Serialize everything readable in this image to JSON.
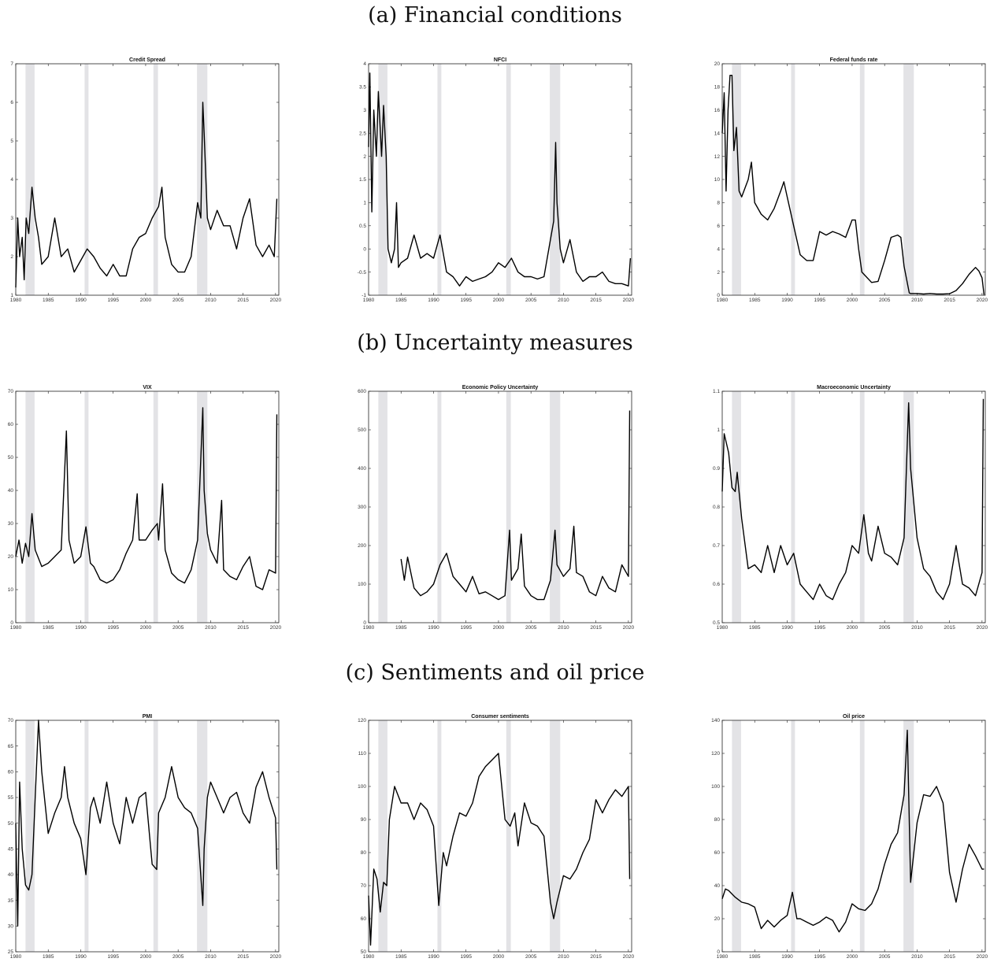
{
  "sections": [
    {
      "label": "(a) Financial conditions"
    },
    {
      "label": "(b) Uncertainty measures"
    },
    {
      "label": "(c) Sentiments and oil price"
    }
  ],
  "colors": {
    "line": "#000000",
    "recession": "#e3e3e6",
    "axes": "#222222"
  },
  "chart_data": [
    {
      "type": "line",
      "title": "Credit Spread",
      "xlim": [
        1980,
        2020.5
      ],
      "ylim": [
        1,
        7
      ],
      "xticks": [
        1980,
        1985,
        1990,
        1995,
        2000,
        2005,
        2010,
        2015,
        2020
      ],
      "yticks": [
        1,
        2,
        3,
        4,
        5,
        6,
        7
      ],
      "recessions": [
        [
          1981.5,
          1982.9
        ],
        [
          1990.6,
          1991.2
        ],
        [
          2001.2,
          2001.9
        ],
        [
          2007.9,
          2009.5
        ]
      ],
      "x": [
        1980,
        1980.3,
        1980.6,
        1981,
        1981.3,
        1981.6,
        1982,
        1982.5,
        1983,
        1983.5,
        1984,
        1985,
        1986,
        1987,
        1988,
        1989,
        1990,
        1991,
        1992,
        1993,
        1994,
        1995,
        1996,
        1997,
        1998,
        1999,
        2000,
        2001,
        2002,
        2002.5,
        2003,
        2004,
        2005,
        2006,
        2007,
        2008,
        2008.5,
        2008.8,
        2009,
        2009.5,
        2010,
        2011,
        2012,
        2013,
        2014,
        2015,
        2016,
        2017,
        2018,
        2019,
        2019.8,
        2020.2
      ],
      "y": [
        1.2,
        3.0,
        2.0,
        2.5,
        1.4,
        3.0,
        2.6,
        3.8,
        3.0,
        2.5,
        1.8,
        2.0,
        3.0,
        2.0,
        2.2,
        1.6,
        1.9,
        2.2,
        2.0,
        1.7,
        1.5,
        1.8,
        1.5,
        1.5,
        2.2,
        2.5,
        2.6,
        3.0,
        3.3,
        3.8,
        2.5,
        1.8,
        1.6,
        1.6,
        2.0,
        3.4,
        3.0,
        6.0,
        5.2,
        3.0,
        2.7,
        3.2,
        2.8,
        2.8,
        2.2,
        3.0,
        3.5,
        2.3,
        2.0,
        2.3,
        2.0,
        3.5
      ]
    },
    {
      "type": "line",
      "title": "NFCI",
      "xlim": [
        1980,
        2020.5
      ],
      "ylim": [
        -1,
        4
      ],
      "xticks": [
        1980,
        1985,
        1990,
        1995,
        2000,
        2005,
        2010,
        2015,
        2020
      ],
      "yticks": [
        -1,
        -0.5,
        0,
        0.5,
        1,
        1.5,
        2,
        2.5,
        3,
        3.5,
        4
      ],
      "recessions": [
        [
          1981.5,
          1982.9
        ],
        [
          1990.6,
          1991.2
        ],
        [
          2001.2,
          2001.9
        ],
        [
          2007.9,
          2009.5
        ]
      ],
      "x": [
        1980,
        1980.2,
        1980.5,
        1980.8,
        1981.2,
        1981.5,
        1982,
        1982.3,
        1982.7,
        1983,
        1983.5,
        1984,
        1984.3,
        1984.6,
        1985,
        1986,
        1987,
        1988,
        1989,
        1990,
        1991,
        1992,
        1993,
        1994,
        1995,
        1996,
        1997,
        1998,
        1999,
        2000,
        2001,
        2002,
        2003,
        2004,
        2005,
        2006,
        2007,
        2008,
        2008.5,
        2008.8,
        2009,
        2009.5,
        2010,
        2011,
        2012,
        2013,
        2014,
        2015,
        2016,
        2017,
        2018,
        2019,
        2020,
        2020.3
      ],
      "y": [
        2.2,
        3.8,
        0.8,
        3.0,
        2.0,
        3.4,
        2.0,
        3.1,
        2.0,
        0.0,
        -0.3,
        0.0,
        1.0,
        -0.4,
        -0.3,
        -0.2,
        0.3,
        -0.2,
        -0.1,
        -0.2,
        0.3,
        -0.5,
        -0.6,
        -0.8,
        -0.6,
        -0.7,
        -0.65,
        -0.6,
        -0.5,
        -0.3,
        -0.4,
        -0.2,
        -0.5,
        -0.6,
        -0.6,
        -0.65,
        -0.6,
        0.2,
        0.6,
        2.3,
        1.0,
        0.0,
        -0.3,
        0.2,
        -0.5,
        -0.7,
        -0.6,
        -0.6,
        -0.5,
        -0.7,
        -0.75,
        -0.75,
        -0.8,
        -0.2
      ]
    },
    {
      "type": "line",
      "title": "Federal funds rate",
      "xlim": [
        1980,
        2020.5
      ],
      "ylim": [
        0,
        20
      ],
      "xticks": [
        1980,
        1985,
        1990,
        1995,
        2000,
        2005,
        2010,
        2015,
        2020
      ],
      "yticks": [
        0,
        2,
        4,
        6,
        8,
        10,
        12,
        14,
        16,
        18,
        20
      ],
      "recessions": [
        [
          1981.5,
          1982.9
        ],
        [
          1990.6,
          1991.2
        ],
        [
          2001.2,
          2001.9
        ],
        [
          2007.9,
          2009.5
        ]
      ],
      "x": [
        1980,
        1980.3,
        1980.6,
        1980.9,
        1981.2,
        1981.5,
        1981.8,
        1982.2,
        1982.6,
        1983,
        1984,
        1984.5,
        1985,
        1986,
        1987,
        1988,
        1989,
        1989.5,
        1990,
        1991,
        1992,
        1993,
        1994,
        1995,
        1996,
        1997,
        1998,
        1999,
        2000,
        2000.5,
        2001,
        2001.5,
        2002,
        2003,
        2004,
        2005,
        2006,
        2007,
        2007.5,
        2008,
        2008.8,
        2009,
        2010,
        2011,
        2012,
        2013,
        2014,
        2015,
        2016,
        2017,
        2018,
        2019,
        2019.5,
        2020,
        2020.3
      ],
      "y": [
        14,
        17.5,
        9,
        16,
        19,
        19,
        12.5,
        14.5,
        9,
        8.5,
        10,
        11.5,
        8,
        7,
        6.5,
        7.5,
        9,
        9.8,
        8.5,
        6,
        3.5,
        3,
        3,
        5.5,
        5.2,
        5.5,
        5.3,
        5,
        6.5,
        6.5,
        4,
        2,
        1.7,
        1.1,
        1.2,
        3,
        5,
        5.2,
        5,
        2.5,
        0.2,
        0.15,
        0.15,
        0.1,
        0.15,
        0.1,
        0.1,
        0.13,
        0.4,
        1,
        1.8,
        2.4,
        2.1,
        1.5,
        0.05
      ]
    },
    {
      "type": "line",
      "title": "VIX",
      "xlim": [
        1980,
        2020.5
      ],
      "ylim": [
        0,
        70
      ],
      "xticks": [
        1980,
        1985,
        1990,
        1995,
        2000,
        2005,
        2010,
        2015,
        2020
      ],
      "yticks": [
        0,
        10,
        20,
        30,
        40,
        50,
        60,
        70
      ],
      "recessions": [
        [
          1981.5,
          1982.9
        ],
        [
          1990.6,
          1991.2
        ],
        [
          2001.2,
          2001.9
        ],
        [
          2007.9,
          2009.5
        ]
      ],
      "x": [
        1980,
        1980.5,
        1981,
        1981.5,
        1982,
        1982.5,
        1983,
        1984,
        1985,
        1986,
        1987,
        1987.8,
        1988.2,
        1989,
        1990,
        1990.8,
        1991.5,
        1992,
        1993,
        1994,
        1995,
        1996,
        1997,
        1998,
        1998.7,
        1999,
        2000,
        2001,
        2001.8,
        2002,
        2002.6,
        2003,
        2004,
        2005,
        2006,
        2007,
        2008,
        2008.8,
        2009,
        2009.5,
        2010,
        2011,
        2011.7,
        2012,
        2013,
        2014,
        2015,
        2016,
        2017,
        2018,
        2019,
        2020,
        2020.2
      ],
      "y": [
        20,
        25,
        18,
        24,
        20,
        33,
        22,
        17,
        18,
        20,
        22,
        58,
        25,
        18,
        20,
        29,
        18,
        17,
        13,
        12,
        13,
        16,
        21,
        25,
        39,
        25,
        25,
        28,
        30,
        25,
        42,
        22,
        15,
        13,
        12,
        16,
        25,
        65,
        40,
        27,
        22,
        18,
        37,
        16,
        14,
        13,
        17,
        20,
        11,
        10,
        16,
        15,
        63
      ]
    },
    {
      "type": "line",
      "title": "Economic Policy Uncertainty",
      "xlim": [
        1980,
        2020.5
      ],
      "ylim": [
        0,
        600
      ],
      "xticks": [
        1980,
        1985,
        1990,
        1995,
        2000,
        2005,
        2010,
        2015,
        2020
      ],
      "yticks": [
        0,
        100,
        200,
        300,
        400,
        500,
        600
      ],
      "recessions": [
        [
          1981.5,
          1982.9
        ],
        [
          1990.6,
          1991.2
        ],
        [
          2001.2,
          2001.9
        ],
        [
          2007.9,
          2009.5
        ]
      ],
      "x": [
        1985,
        1985.5,
        1986,
        1987,
        1988,
        1989,
        1990,
        1991,
        1992,
        1993,
        1994,
        1995,
        1996,
        1997,
        1998,
        1999,
        2000,
        2001,
        2001.7,
        2002,
        2003,
        2003.5,
        2004,
        2005,
        2006,
        2007,
        2008,
        2008.7,
        2009,
        2010,
        2011,
        2011.6,
        2012,
        2013,
        2014,
        2015,
        2016,
        2017,
        2018,
        2019,
        2020,
        2020.2
      ],
      "y": [
        165,
        110,
        170,
        90,
        70,
        80,
        100,
        150,
        180,
        120,
        100,
        80,
        120,
        75,
        80,
        70,
        60,
        70,
        240,
        110,
        140,
        230,
        95,
        70,
        60,
        60,
        110,
        240,
        150,
        120,
        140,
        250,
        130,
        120,
        80,
        70,
        120,
        90,
        80,
        150,
        120,
        550
      ]
    },
    {
      "type": "line",
      "title": "Macroeconomic Uncertainty",
      "xlim": [
        1980,
        2020.5
      ],
      "ylim": [
        0.5,
        1.1
      ],
      "xticks": [
        1980,
        1985,
        1990,
        1995,
        2000,
        2005,
        2010,
        2015,
        2020
      ],
      "yticks": [
        0.5,
        0.6,
        0.7,
        0.8,
        0.9,
        1,
        1.1
      ],
      "recessions": [
        [
          1981.5,
          1982.9
        ],
        [
          1990.6,
          1991.2
        ],
        [
          2001.2,
          2001.9
        ],
        [
          2007.9,
          2009.5
        ]
      ],
      "x": [
        1980,
        1980.3,
        1981,
        1981.5,
        1982,
        1982.3,
        1983,
        1984,
        1985,
        1986,
        1987,
        1988,
        1989,
        1990,
        1991,
        1992,
        1993,
        1994,
        1995,
        1996,
        1997,
        1998,
        1999,
        2000,
        2001,
        2001.8,
        2002.5,
        2003,
        2004,
        2005,
        2006,
        2007,
        2008,
        2008.7,
        2009,
        2010,
        2011,
        2012,
        2013,
        2014,
        2015,
        2016,
        2017,
        2018,
        2019,
        2020,
        2020.2
      ],
      "y": [
        0.84,
        0.99,
        0.94,
        0.85,
        0.84,
        0.89,
        0.77,
        0.64,
        0.65,
        0.63,
        0.7,
        0.63,
        0.7,
        0.65,
        0.68,
        0.6,
        0.58,
        0.56,
        0.6,
        0.57,
        0.56,
        0.6,
        0.63,
        0.7,
        0.68,
        0.78,
        0.68,
        0.66,
        0.75,
        0.68,
        0.67,
        0.65,
        0.72,
        1.07,
        0.9,
        0.72,
        0.64,
        0.62,
        0.58,
        0.56,
        0.6,
        0.7,
        0.6,
        0.59,
        0.57,
        0.63,
        1.08
      ]
    },
    {
      "type": "line",
      "title": "PMI",
      "xlim": [
        1980,
        2020.5
      ],
      "ylim": [
        25,
        70
      ],
      "xticks": [
        1980,
        1985,
        1990,
        1995,
        2000,
        2005,
        2010,
        2015,
        2020
      ],
      "yticks": [
        25,
        30,
        35,
        40,
        45,
        50,
        55,
        60,
        65,
        70
      ],
      "recessions": [
        [
          1981.5,
          1982.9
        ],
        [
          1990.6,
          1991.2
        ],
        [
          2001.2,
          2001.9
        ],
        [
          2007.9,
          2009.5
        ]
      ],
      "x": [
        1980,
        1980.3,
        1980.6,
        1981,
        1981.5,
        1982,
        1982.5,
        1983,
        1983.5,
        1984,
        1985,
        1986,
        1987,
        1987.5,
        1988,
        1989,
        1990,
        1990.8,
        1991.5,
        1992,
        1993,
        1994,
        1995,
        1996,
        1997,
        1998,
        1999,
        2000,
        2001,
        2001.7,
        2002,
        2003,
        2004,
        2005,
        2006,
        2007,
        2008,
        2008.8,
        2009,
        2009.5,
        2010,
        2011,
        2012,
        2013,
        2014,
        2015,
        2016,
        2017,
        2018,
        2019,
        2020,
        2020.2
      ],
      "y": [
        50,
        30,
        58,
        45,
        38,
        37,
        40,
        55,
        70,
        60,
        48,
        52,
        55,
        61,
        55,
        50,
        47,
        40,
        53,
        55,
        50,
        58,
        50,
        46,
        55,
        50,
        55,
        56,
        42,
        41,
        52,
        55,
        61,
        55,
        53,
        52,
        49,
        34,
        45,
        55,
        58,
        55,
        52,
        55,
        56,
        52,
        50,
        57,
        60,
        55,
        51,
        41
      ]
    },
    {
      "type": "line",
      "title": "Consumer sentiments",
      "xlim": [
        1980,
        2020.5
      ],
      "ylim": [
        50,
        120
      ],
      "xticks": [
        1980,
        1985,
        1990,
        1995,
        2000,
        2005,
        2010,
        2015,
        2020
      ],
      "yticks": [
        50,
        60,
        70,
        80,
        90,
        100,
        110,
        120
      ],
      "recessions": [
        [
          1981.5,
          1982.9
        ],
        [
          1990.6,
          1991.2
        ],
        [
          2001.2,
          2001.9
        ],
        [
          2007.9,
          2009.5
        ]
      ],
      "x": [
        1980,
        1980.3,
        1980.8,
        1981.3,
        1981.8,
        1982.3,
        1982.8,
        1983.2,
        1984,
        1985,
        1986,
        1987,
        1988,
        1989,
        1990,
        1990.8,
        1991.5,
        1992,
        1993,
        1994,
        1995,
        1996,
        1997,
        1998,
        1999,
        2000,
        2001,
        2001.8,
        2002.5,
        2003,
        2004,
        2005,
        2006,
        2007,
        2008,
        2008.5,
        2009,
        2010,
        2011,
        2012,
        2013,
        2014,
        2015,
        2016,
        2017,
        2018,
        2019,
        2020,
        2020.2
      ],
      "y": [
        67,
        52,
        75,
        72,
        62,
        71,
        70,
        90,
        100,
        95,
        95,
        90,
        95,
        93,
        88,
        64,
        80,
        76,
        85,
        92,
        91,
        95,
        103,
        106,
        108,
        110,
        90,
        88,
        92,
        82,
        95,
        89,
        88,
        85,
        65,
        60,
        65,
        73,
        72,
        75,
        80,
        84,
        96,
        92,
        96,
        99,
        97,
        100,
        72
      ]
    },
    {
      "type": "line",
      "title": "Oil price",
      "xlim": [
        1980,
        2020.5
      ],
      "ylim": [
        0,
        140
      ],
      "xticks": [
        1980,
        1985,
        1990,
        1995,
        2000,
        2005,
        2010,
        2015,
        2020
      ],
      "yticks": [
        0,
        20,
        40,
        60,
        80,
        100,
        120,
        140
      ],
      "recessions": [
        [
          1981.5,
          1982.9
        ],
        [
          1990.6,
          1991.2
        ],
        [
          2001.2,
          2001.9
        ],
        [
          2007.9,
          2009.5
        ]
      ],
      "x": [
        1980,
        1980.5,
        1981,
        1982,
        1983,
        1984,
        1985,
        1986,
        1987,
        1988,
        1989,
        1990,
        1990.8,
        1991.5,
        1992,
        1993,
        1994,
        1995,
        1996,
        1997,
        1998,
        1999,
        2000,
        2001,
        2002,
        2003,
        2004,
        2005,
        2006,
        2007,
        2008,
        2008.5,
        2009,
        2010,
        2011,
        2012,
        2013,
        2014,
        2015,
        2016,
        2017,
        2018,
        2019,
        2020,
        2020.3
      ],
      "y": [
        32,
        38,
        37,
        33,
        30,
        29,
        27,
        14,
        19,
        15,
        19,
        22,
        36,
        20,
        20,
        18,
        16,
        18,
        21,
        19,
        12,
        18,
        29,
        26,
        25,
        29,
        38,
        53,
        65,
        72,
        95,
        134,
        42,
        78,
        95,
        94,
        100,
        90,
        48,
        30,
        50,
        65,
        58,
        50,
        50
      ]
    }
  ]
}
